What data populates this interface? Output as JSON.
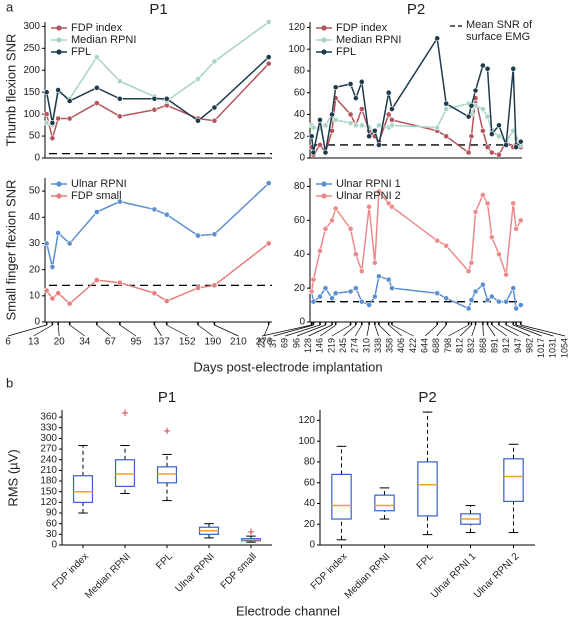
{
  "figure": {
    "panel_a": "a",
    "panel_b": "b",
    "x_label_a": "Days post-electrode implantation",
    "x_label_b": "Electrode channel",
    "y_label_b": "RMS (µV)"
  },
  "chart_data": [
    {
      "type": "line",
      "title": "P1",
      "ylabel": "Thumb flexion SNR",
      "x": [
        6,
        13,
        20,
        34,
        67,
        95,
        137,
        152,
        190,
        210,
        276
      ],
      "xlim": [
        4,
        280
      ],
      "ylim": [
        0,
        310
      ],
      "yticks": [
        0,
        50,
        100,
        150,
        200,
        250,
        300
      ],
      "reference_line": 10,
      "series": [
        {
          "name": "FDP index",
          "color": "#b5545c",
          "values": [
            100,
            45,
            90,
            90,
            125,
            95,
            110,
            120,
            90,
            85,
            215
          ]
        },
        {
          "name": "Median RPNI",
          "color": "#a8d5c5",
          "values": [
            80,
            75,
            150,
            135,
            230,
            175,
            140,
            130,
            180,
            220,
            310
          ]
        },
        {
          "name": "FPL",
          "color": "#1f3a4d",
          "values": [
            150,
            80,
            155,
            130,
            160,
            135,
            135,
            135,
            85,
            115,
            230
          ]
        }
      ]
    },
    {
      "type": "line",
      "ylabel": "Small finger flexion SNR",
      "x": [
        6,
        13,
        20,
        34,
        67,
        95,
        137,
        152,
        190,
        210,
        276
      ],
      "xlim": [
        4,
        280
      ],
      "xticks": [
        6,
        13,
        20,
        34,
        67,
        95,
        137,
        152,
        190,
        210,
        276
      ],
      "ylim": [
        0,
        55
      ],
      "yticks": [
        0,
        10,
        20,
        30,
        40,
        50
      ],
      "reference_line": 14,
      "series": [
        {
          "name": "Ulnar RPNI",
          "color": "#5b8fd0",
          "values": [
            30,
            21,
            34,
            30,
            42,
            46,
            43,
            41,
            33,
            33.5,
            53
          ]
        },
        {
          "name": "FDP small",
          "color": "#e87d7d",
          "values": [
            12,
            9,
            11,
            7,
            16,
            15,
            11,
            8,
            13,
            14,
            30
          ]
        }
      ]
    },
    {
      "type": "line",
      "title": "P2",
      "annotation": "Mean SNR of surface EMG",
      "x": [
        28,
        37,
        69,
        96,
        128,
        146,
        219,
        245,
        274,
        310,
        338,
        358,
        406,
        422,
        644,
        688,
        798,
        812,
        832,
        868,
        891,
        912,
        947,
        982,
        1017,
        1031,
        1054
      ],
      "xlim": [
        20,
        1060
      ],
      "ylim": [
        0,
        125
      ],
      "yticks": [
        0,
        20,
        40,
        60,
        80,
        100,
        120
      ],
      "reference_line": 12,
      "series": [
        {
          "name": "FDP index",
          "color": "#b5545c",
          "values": [
            10,
            3,
            12,
            5,
            25,
            55,
            40,
            30,
            45,
            25,
            20,
            15,
            40,
            35,
            25,
            20,
            5,
            20,
            55,
            25,
            10,
            5,
            3,
            15,
            10,
            12,
            10
          ]
        },
        {
          "name": "Median RPNI",
          "color": "#a8d5c5",
          "values": [
            30,
            28,
            27,
            30,
            40,
            35,
            32,
            30,
            30,
            28,
            25,
            30,
            28,
            30,
            28,
            45,
            50,
            40,
            48,
            45,
            38,
            25,
            20,
            15,
            25,
            18,
            12
          ]
        },
        {
          "name": "FPL",
          "color": "#1f3a4d",
          "values": [
            20,
            5,
            35,
            5,
            40,
            65,
            68,
            55,
            70,
            20,
            25,
            12,
            60,
            45,
            110,
            50,
            38,
            48,
            62,
            85,
            82,
            22,
            30,
            12,
            82,
            10,
            15
          ]
        }
      ]
    },
    {
      "type": "line",
      "x": [
        28,
        37,
        69,
        96,
        128,
        146,
        219,
        245,
        274,
        310,
        338,
        358,
        406,
        422,
        644,
        688,
        798,
        812,
        832,
        868,
        891,
        912,
        947,
        982,
        1017,
        1031,
        1054
      ],
      "xlim": [
        20,
        1060
      ],
      "xticks": [
        28,
        37,
        69,
        96,
        128,
        146,
        219,
        245,
        274,
        310,
        338,
        358,
        406,
        422,
        644,
        688,
        798,
        812,
        832,
        868,
        891,
        912,
        947,
        982,
        1017,
        1031,
        1054
      ],
      "ylim": [
        0,
        85
      ],
      "yticks": [
        0,
        20,
        40,
        60,
        80
      ],
      "reference_line": 12,
      "series": [
        {
          "name": "Ulnar RPNI 1",
          "color": "#5b8fd0",
          "values": [
            18,
            12,
            15,
            20,
            14,
            17,
            18,
            20,
            12,
            10,
            15,
            27,
            25,
            20,
            17,
            14,
            8,
            13,
            18,
            22,
            13,
            15,
            12,
            12,
            20,
            8,
            10
          ]
        },
        {
          "name": "Ulnar RPNI 2",
          "color": "#ee8a8a",
          "values": [
            18,
            25,
            42,
            55,
            60,
            67,
            55,
            40,
            30,
            68,
            35,
            77,
            70,
            68,
            48,
            45,
            30,
            35,
            65,
            75,
            70,
            50,
            40,
            28,
            70,
            55,
            60
          ]
        }
      ]
    },
    {
      "type": "box",
      "title": "P1",
      "categories": [
        "FDP index",
        "Median RPNI",
        "FPL",
        "Ulnar RPNI",
        "FDP small"
      ],
      "ylim": [
        0,
        380
      ],
      "yticks": [
        0,
        30,
        60,
        90,
        120,
        150,
        180,
        210,
        240,
        270,
        300,
        330,
        360
      ],
      "box_color": "#3a5fcd",
      "median_color": "#f0a030",
      "flier_color": "#e03030",
      "boxes": [
        {
          "whislo": 90,
          "q1": 120,
          "med": 150,
          "q3": 195,
          "whishi": 280,
          "fliers": []
        },
        {
          "whislo": 145,
          "q1": 165,
          "med": 200,
          "q3": 240,
          "whishi": 280,
          "fliers": [
            370
          ]
        },
        {
          "whislo": 125,
          "q1": 175,
          "med": 200,
          "q3": 220,
          "whishi": 255,
          "fliers": [
            320
          ]
        },
        {
          "whislo": 20,
          "q1": 30,
          "med": 40,
          "q3": 50,
          "whishi": 60,
          "fliers": []
        },
        {
          "whislo": 8,
          "q1": 12,
          "med": 15,
          "q3": 18,
          "whishi": 25,
          "fliers": [
            35
          ]
        }
      ]
    },
    {
      "type": "box",
      "title": "P2",
      "categories": [
        "FDP index",
        "Median RPNI",
        "FPL",
        "Ulnar RPNI 1",
        "Ulnar RPNI 2"
      ],
      "ylim": [
        0,
        130
      ],
      "yticks": [
        0,
        20,
        40,
        60,
        80,
        100,
        120
      ],
      "box_color": "#3a5fcd",
      "median_color": "#f0a030",
      "flier_color": "#e03030",
      "boxes": [
        {
          "whislo": 5,
          "q1": 25,
          "med": 38,
          "q3": 68,
          "whishi": 95,
          "fliers": []
        },
        {
          "whislo": 25,
          "q1": 33,
          "med": 38,
          "q3": 48,
          "whishi": 55,
          "fliers": []
        },
        {
          "whislo": 10,
          "q1": 28,
          "med": 58,
          "q3": 80,
          "whishi": 128,
          "fliers": []
        },
        {
          "whislo": 12,
          "q1": 20,
          "med": 25,
          "q3": 30,
          "whishi": 38,
          "fliers": []
        },
        {
          "whislo": 12,
          "q1": 42,
          "med": 66,
          "q3": 83,
          "whishi": 97,
          "fliers": []
        }
      ]
    }
  ]
}
